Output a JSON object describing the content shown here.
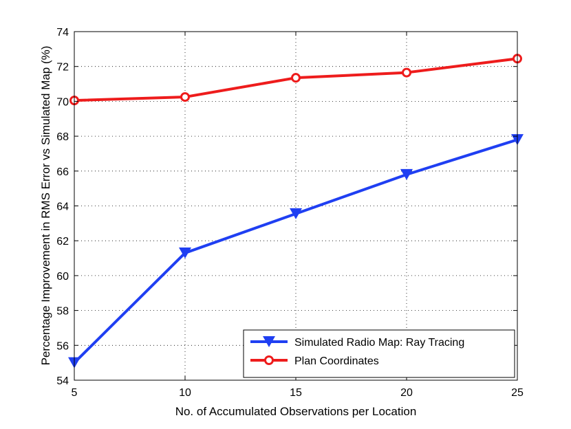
{
  "chart_data": {
    "type": "line",
    "title": "",
    "xlabel": "No. of Accumulated Observations per Location",
    "ylabel": "Percentage Improvement in RMS Error  vs Simulated Map (%)",
    "x": [
      5,
      10,
      15,
      20,
      25
    ],
    "xlim": [
      5,
      25
    ],
    "ylim": [
      54,
      74
    ],
    "xticks": [
      5,
      10,
      15,
      20,
      25
    ],
    "yticks": [
      54,
      56,
      58,
      60,
      62,
      64,
      66,
      68,
      70,
      72,
      74
    ],
    "grid": true,
    "legend_position": "bottom-right",
    "series": [
      {
        "name": "Simulated Radio Map: Ray Tracing",
        "color": "#1f3ff2",
        "marker": "triangle-down",
        "values": [
          55.0,
          61.3,
          63.55,
          65.8,
          67.8
        ]
      },
      {
        "name": "Plan Coordinates",
        "color": "#ee1c1c",
        "marker": "circle",
        "values": [
          70.05,
          70.25,
          71.35,
          71.65,
          72.45
        ]
      }
    ]
  }
}
